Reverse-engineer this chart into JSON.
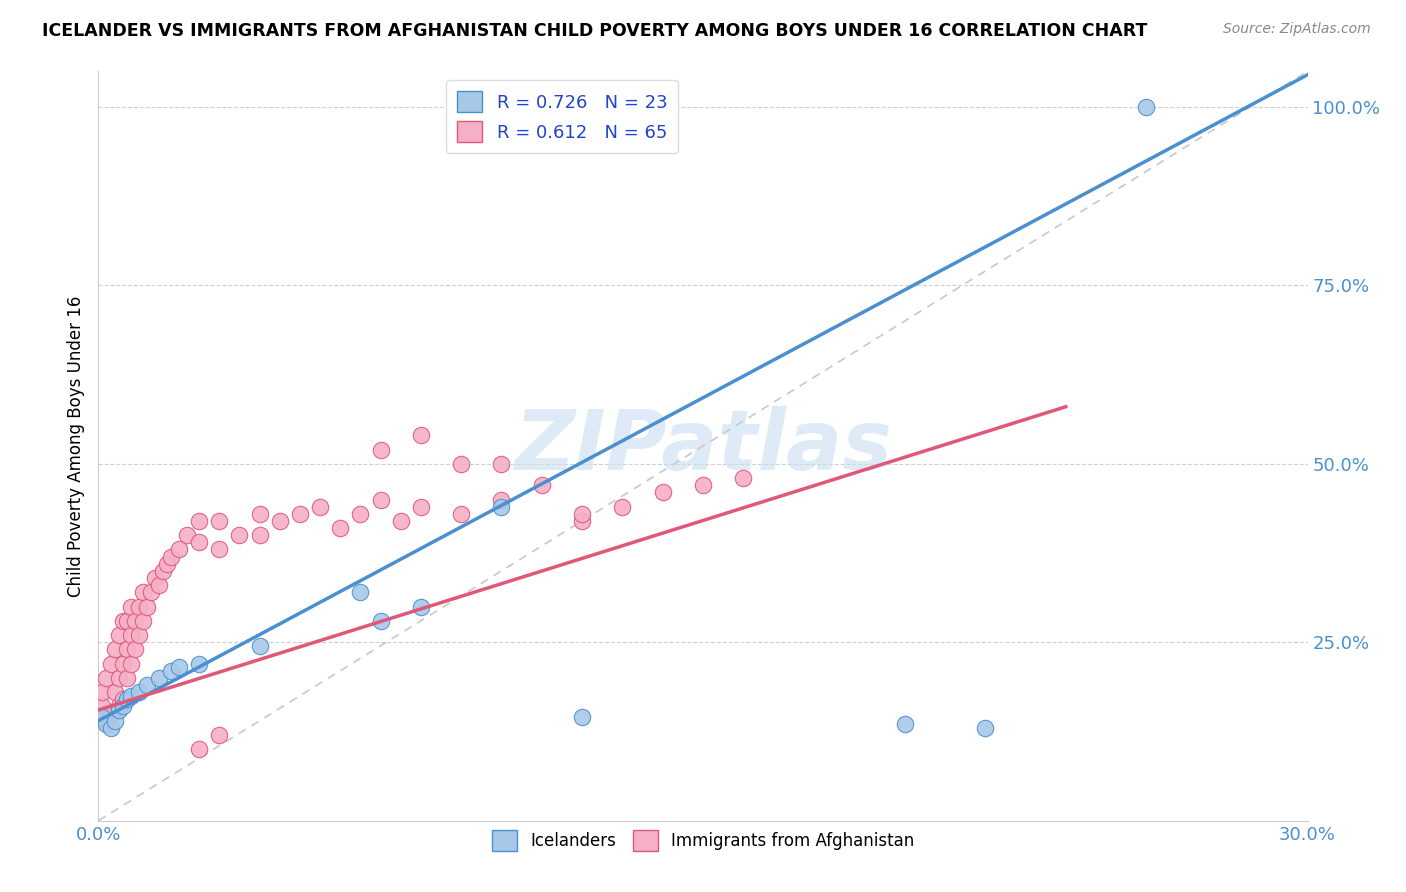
{
  "title": "ICELANDER VS IMMIGRANTS FROM AFGHANISTAN CHILD POVERTY AMONG BOYS UNDER 16 CORRELATION CHART",
  "source": "Source: ZipAtlas.com",
  "ylabel": "Child Poverty Among Boys Under 16",
  "xlim": [
    0.0,
    0.3
  ],
  "ylim": [
    0.0,
    1.05
  ],
  "yticks": [
    0.0,
    0.25,
    0.5,
    0.75,
    1.0
  ],
  "ytick_labels": [
    "",
    "25.0%",
    "50.0%",
    "75.0%",
    "100.0%"
  ],
  "xticks": [
    0.0,
    0.05,
    0.1,
    0.15,
    0.2,
    0.25,
    0.3
  ],
  "xtick_labels": [
    "0.0%",
    "",
    "",
    "",
    "",
    "",
    "30.0%"
  ],
  "icelanders_color": "#a8c8e8",
  "afghanistan_color": "#f5b0c8",
  "icelanders_edge": "#4a90d0",
  "afghanistan_edge": "#e05878",
  "trend_icelanders_color": "#4a90d0",
  "trend_afghanistan_color": "#e05878",
  "diagonal_color": "#c8c8c8",
  "legend_R_iceland": "0.726",
  "legend_N_iceland": "23",
  "legend_R_afghan": "0.612",
  "legend_N_afghan": "65",
  "legend_text_color": "#2244cc",
  "watermark_text": "ZIPatlas",
  "watermark_color": "#c8dff0",
  "icelanders_x": [
    0.001,
    0.002,
    0.003,
    0.004,
    0.005,
    0.006,
    0.007,
    0.008,
    0.01,
    0.012,
    0.015,
    0.018,
    0.02,
    0.025,
    0.04,
    0.065,
    0.07,
    0.08,
    0.1,
    0.12,
    0.2,
    0.22,
    0.26
  ],
  "icelanders_y": [
    0.145,
    0.135,
    0.13,
    0.14,
    0.155,
    0.16,
    0.17,
    0.175,
    0.18,
    0.19,
    0.2,
    0.21,
    0.215,
    0.22,
    0.245,
    0.32,
    0.28,
    0.3,
    0.44,
    0.145,
    0.135,
    0.13,
    1.0
  ],
  "afghanistan_x": [
    0.001,
    0.001,
    0.002,
    0.002,
    0.003,
    0.003,
    0.004,
    0.004,
    0.005,
    0.005,
    0.005,
    0.006,
    0.006,
    0.006,
    0.007,
    0.007,
    0.007,
    0.008,
    0.008,
    0.008,
    0.009,
    0.009,
    0.01,
    0.01,
    0.011,
    0.011,
    0.012,
    0.013,
    0.014,
    0.015,
    0.016,
    0.017,
    0.018,
    0.02,
    0.022,
    0.025,
    0.025,
    0.03,
    0.03,
    0.035,
    0.04,
    0.04,
    0.045,
    0.05,
    0.055,
    0.06,
    0.065,
    0.07,
    0.075,
    0.08,
    0.09,
    0.1,
    0.11,
    0.12,
    0.13,
    0.14,
    0.15,
    0.16,
    0.07,
    0.08,
    0.09,
    0.1,
    0.12,
    0.025,
    0.03
  ],
  "afghanistan_y": [
    0.16,
    0.18,
    0.14,
    0.2,
    0.15,
    0.22,
    0.18,
    0.24,
    0.2,
    0.16,
    0.26,
    0.17,
    0.22,
    0.28,
    0.2,
    0.24,
    0.28,
    0.22,
    0.26,
    0.3,
    0.24,
    0.28,
    0.26,
    0.3,
    0.28,
    0.32,
    0.3,
    0.32,
    0.34,
    0.33,
    0.35,
    0.36,
    0.37,
    0.38,
    0.4,
    0.39,
    0.42,
    0.38,
    0.42,
    0.4,
    0.4,
    0.43,
    0.42,
    0.43,
    0.44,
    0.41,
    0.43,
    0.45,
    0.42,
    0.44,
    0.43,
    0.45,
    0.47,
    0.42,
    0.44,
    0.46,
    0.47,
    0.48,
    0.52,
    0.54,
    0.5,
    0.5,
    0.43,
    0.1,
    0.12
  ]
}
